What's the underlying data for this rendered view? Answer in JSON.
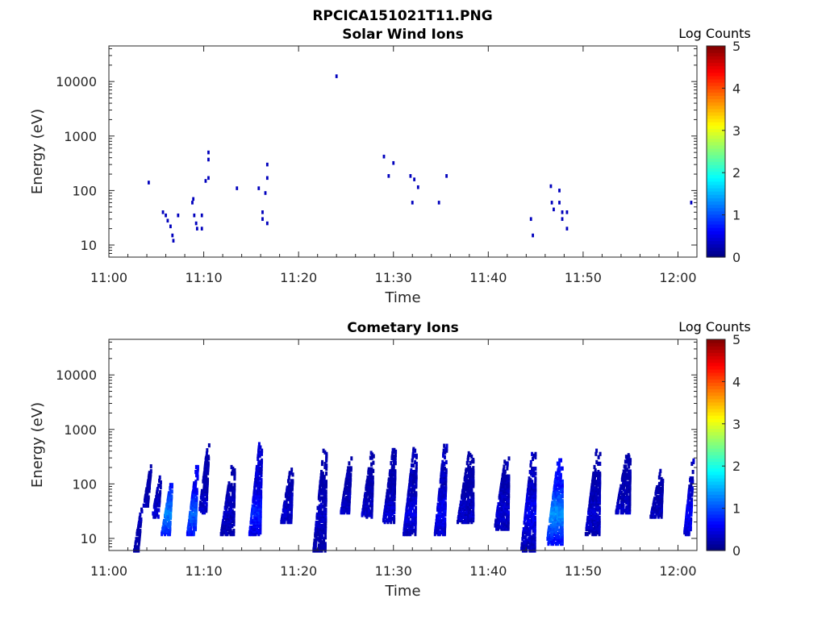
{
  "figure": {
    "filename_title": "RPCICA151021T11.PNG"
  },
  "chart_data": [
    {
      "type": "heatmap",
      "title": "Solar Wind Ions",
      "xlabel": "Time",
      "ylabel": "Energy (eV)",
      "x_ticks": [
        "11:00",
        "11:10",
        "11:20",
        "11:30",
        "11:40",
        "11:50",
        "12:00"
      ],
      "y_ticks": [
        "10",
        "100",
        "1000",
        "10000"
      ],
      "y_scale": "log",
      "xlim": [
        "11:00",
        "12:02"
      ],
      "ylim": [
        6,
        45000
      ],
      "colorbar": {
        "label": "Log Counts",
        "ticks": [
          "0",
          "1",
          "2",
          "3",
          "4",
          "5"
        ],
        "range": [
          0,
          5
        ],
        "colormap": "jet"
      },
      "points": [
        {
          "t": 4.2,
          "e": 140,
          "v": 0.3
        },
        {
          "t": 5.7,
          "e": 40,
          "v": 0.3
        },
        {
          "t": 6.0,
          "e": 35,
          "v": 0.3
        },
        {
          "t": 6.2,
          "e": 28,
          "v": 0.3
        },
        {
          "t": 6.5,
          "e": 22,
          "v": 0.3
        },
        {
          "t": 6.7,
          "e": 15,
          "v": 0.3
        },
        {
          "t": 6.8,
          "e": 12,
          "v": 0.3
        },
        {
          "t": 7.3,
          "e": 35,
          "v": 0.3
        },
        {
          "t": 8.8,
          "e": 60,
          "v": 0.3
        },
        {
          "t": 8.9,
          "e": 70,
          "v": 0.3
        },
        {
          "t": 9.0,
          "e": 35,
          "v": 0.3
        },
        {
          "t": 9.2,
          "e": 25,
          "v": 0.3
        },
        {
          "t": 9.3,
          "e": 20,
          "v": 0.3
        },
        {
          "t": 9.8,
          "e": 20,
          "v": 0.3
        },
        {
          "t": 9.8,
          "e": 35,
          "v": 0.3
        },
        {
          "t": 10.2,
          "e": 150,
          "v": 0.3
        },
        {
          "t": 10.5,
          "e": 500,
          "v": 0.3
        },
        {
          "t": 10.5,
          "e": 370,
          "v": 0.3
        },
        {
          "t": 10.5,
          "e": 170,
          "v": 0.3
        },
        {
          "t": 13.5,
          "e": 110,
          "v": 0.3
        },
        {
          "t": 15.8,
          "e": 110,
          "v": 0.3
        },
        {
          "t": 16.2,
          "e": 40,
          "v": 0.3
        },
        {
          "t": 16.2,
          "e": 30,
          "v": 0.3
        },
        {
          "t": 16.5,
          "e": 90,
          "v": 0.3
        },
        {
          "t": 16.7,
          "e": 300,
          "v": 0.3
        },
        {
          "t": 16.7,
          "e": 170,
          "v": 0.3
        },
        {
          "t": 16.7,
          "e": 25,
          "v": 0.3
        },
        {
          "t": 24.0,
          "e": 12500,
          "v": 0.3
        },
        {
          "t": 29.0,
          "e": 420,
          "v": 0.3
        },
        {
          "t": 29.5,
          "e": 185,
          "v": 0.3
        },
        {
          "t": 30.0,
          "e": 320,
          "v": 0.3
        },
        {
          "t": 31.8,
          "e": 185,
          "v": 0.3
        },
        {
          "t": 32.0,
          "e": 60,
          "v": 0.3
        },
        {
          "t": 32.2,
          "e": 160,
          "v": 0.3
        },
        {
          "t": 32.6,
          "e": 115,
          "v": 0.3
        },
        {
          "t": 34.8,
          "e": 60,
          "v": 0.3
        },
        {
          "t": 35.6,
          "e": 185,
          "v": 0.3
        },
        {
          "t": 44.5,
          "e": 30,
          "v": 0.3
        },
        {
          "t": 44.7,
          "e": 15,
          "v": 0.3
        },
        {
          "t": 46.6,
          "e": 120,
          "v": 0.3
        },
        {
          "t": 46.7,
          "e": 60,
          "v": 0.3
        },
        {
          "t": 46.9,
          "e": 45,
          "v": 0.3
        },
        {
          "t": 47.5,
          "e": 100,
          "v": 0.3
        },
        {
          "t": 47.5,
          "e": 60,
          "v": 0.3
        },
        {
          "t": 47.8,
          "e": 40,
          "v": 0.3
        },
        {
          "t": 47.8,
          "e": 30,
          "v": 0.3
        },
        {
          "t": 48.3,
          "e": 40,
          "v": 0.3
        },
        {
          "t": 48.3,
          "e": 20,
          "v": 0.3
        },
        {
          "t": 61.4,
          "e": 60,
          "v": 0.3
        }
      ]
    },
    {
      "type": "heatmap",
      "title": "Cometary Ions",
      "xlabel": "Time",
      "ylabel": "Energy (eV)",
      "x_ticks": [
        "11:00",
        "11:10",
        "11:20",
        "11:30",
        "11:40",
        "11:50",
        "12:00"
      ],
      "y_ticks": [
        "10",
        "100",
        "1000",
        "10000"
      ],
      "y_scale": "log",
      "xlim": [
        "11:00",
        "12:02"
      ],
      "ylim": [
        6,
        45000
      ],
      "colorbar": {
        "label": "Log Counts",
        "ticks": [
          "0",
          "1",
          "2",
          "3",
          "4",
          "5"
        ],
        "range": [
          0,
          5
        ],
        "colormap": "jet"
      },
      "bursts": [
        {
          "t": 3.2,
          "width": 0.6,
          "e_high": 40,
          "e_low": 6,
          "v": 0.3
        },
        {
          "t": 4.2,
          "width": 0.6,
          "e_high": 250,
          "e_low": 40,
          "v": 0.3
        },
        {
          "t": 5.2,
          "width": 0.8,
          "e_high": 150,
          "e_low": 25,
          "v": 0.4
        },
        {
          "t": 6.3,
          "width": 1.0,
          "e_high": 100,
          "e_low": 12,
          "v": 1.3
        },
        {
          "t": 9.0,
          "width": 1.0,
          "e_high": 200,
          "e_low": 12,
          "v": 1.1
        },
        {
          "t": 10.2,
          "width": 0.9,
          "e_high": 520,
          "e_low": 30,
          "v": 0.4
        },
        {
          "t": 12.8,
          "width": 1.5,
          "e_high": 200,
          "e_low": 12,
          "v": 0.35
        },
        {
          "t": 15.7,
          "width": 1.3,
          "e_high": 520,
          "e_low": 12,
          "v": 0.8
        },
        {
          "t": 19.0,
          "width": 1.2,
          "e_high": 200,
          "e_low": 20,
          "v": 0.35
        },
        {
          "t": 22.5,
          "width": 1.4,
          "e_high": 420,
          "e_low": 6,
          "v": 0.35
        },
        {
          "t": 25.2,
          "width": 1.0,
          "e_high": 300,
          "e_low": 30,
          "v": 0.35
        },
        {
          "t": 27.5,
          "width": 1.2,
          "e_high": 380,
          "e_low": 25,
          "v": 0.35
        },
        {
          "t": 29.8,
          "width": 1.3,
          "e_high": 420,
          "e_low": 20,
          "v": 0.4
        },
        {
          "t": 32.0,
          "width": 1.4,
          "e_high": 440,
          "e_low": 12,
          "v": 0.5
        },
        {
          "t": 35.2,
          "width": 1.2,
          "e_high": 520,
          "e_low": 12,
          "v": 0.6
        },
        {
          "t": 37.9,
          "width": 1.8,
          "e_high": 380,
          "e_low": 20,
          "v": 0.35
        },
        {
          "t": 41.7,
          "width": 1.6,
          "e_high": 300,
          "e_low": 15,
          "v": 0.4
        },
        {
          "t": 44.5,
          "width": 1.6,
          "e_high": 350,
          "e_low": 6,
          "v": 0.6
        },
        {
          "t": 47.3,
          "width": 1.8,
          "e_high": 280,
          "e_low": 8,
          "v": 1.4
        },
        {
          "t": 51.3,
          "width": 1.6,
          "e_high": 400,
          "e_low": 12,
          "v": 0.4
        },
        {
          "t": 54.5,
          "width": 1.6,
          "e_high": 350,
          "e_low": 30,
          "v": 0.35
        },
        {
          "t": 58.0,
          "width": 1.3,
          "e_high": 170,
          "e_low": 25,
          "v": 0.3
        },
        {
          "t": 61.3,
          "width": 0.8,
          "e_high": 300,
          "e_low": 12,
          "v": 0.6
        }
      ]
    }
  ]
}
